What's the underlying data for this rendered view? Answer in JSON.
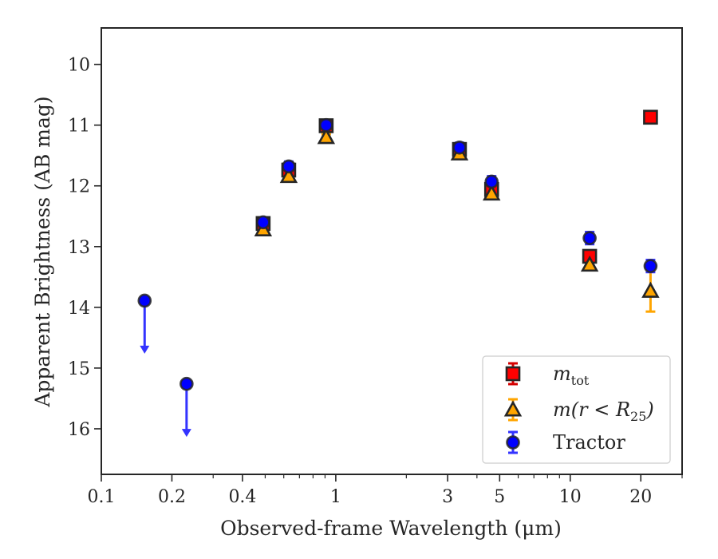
{
  "chart_data": {
    "type": "scatter",
    "xlabel": "Observed-frame Wavelength (μm)",
    "ylabel": "Apparent Brightness (AB mag)",
    "x_scale": "log",
    "xlim": [
      0.1,
      30
    ],
    "ylim": [
      16.75,
      9.4
    ],
    "y_inverted": true,
    "grid": false,
    "legend_position": "lower-right",
    "x_ticks": [
      {
        "value": 0.1,
        "label": "0.1"
      },
      {
        "value": 0.2,
        "label": "0.2"
      },
      {
        "value": 0.4,
        "label": "0.4"
      },
      {
        "value": 1,
        "label": "1"
      },
      {
        "value": 3,
        "label": "3"
      },
      {
        "value": 5,
        "label": "5"
      },
      {
        "value": 10,
        "label": "10"
      },
      {
        "value": 20,
        "label": "20"
      }
    ],
    "x_minor_ticks": [
      0.3,
      0.5,
      0.6,
      0.7,
      0.8,
      0.9,
      2,
      4,
      6,
      7,
      8,
      9,
      30
    ],
    "y_ticks": [
      {
        "value": 10,
        "label": "10"
      },
      {
        "value": 11,
        "label": "11"
      },
      {
        "value": 12,
        "label": "12"
      },
      {
        "value": 13,
        "label": "13"
      },
      {
        "value": 14,
        "label": "14"
      },
      {
        "value": 15,
        "label": "15"
      },
      {
        "value": 16,
        "label": "16"
      }
    ],
    "series": [
      {
        "name": "m_tot",
        "legend_main": "m",
        "legend_sub": "tot",
        "marker": "square",
        "color": "#ff0000",
        "edge_color": "#262626",
        "error_color": "#d40000",
        "points": [
          {
            "x": 0.49,
            "y": 12.62,
            "err": 0.06
          },
          {
            "x": 0.63,
            "y": 11.74,
            "err": 0.06
          },
          {
            "x": 0.91,
            "y": 11.01,
            "err": 0.06
          },
          {
            "x": 3.37,
            "y": 11.4,
            "err": 0.06
          },
          {
            "x": 4.62,
            "y": 12.06,
            "err": 0.08
          },
          {
            "x": 12.1,
            "y": 13.16,
            "err": 0.05
          },
          {
            "x": 22.0,
            "y": 10.87,
            "err": 0.04
          }
        ]
      },
      {
        "name": "m(r<R25)",
        "legend_main": "m(r < R",
        "legend_sub": "25",
        "legend_tail": ")",
        "marker": "triangle",
        "color": "#ffa500",
        "edge_color": "#262626",
        "error_color": "#ffa500",
        "points": [
          {
            "x": 0.49,
            "y": 12.72,
            "err": 0.05
          },
          {
            "x": 0.63,
            "y": 11.84,
            "err": 0.05
          },
          {
            "x": 0.91,
            "y": 11.2,
            "err": 0.05
          },
          {
            "x": 3.37,
            "y": 11.47,
            "err": 0.05
          },
          {
            "x": 4.62,
            "y": 12.13,
            "err": 0.05
          },
          {
            "x": 12.1,
            "y": 13.3,
            "err": 0.05
          },
          {
            "x": 22.0,
            "y": 13.73,
            "err": 0.34
          }
        ]
      },
      {
        "name": "Tractor",
        "legend_main": "Tractor",
        "marker": "circle",
        "color": "#0000ff",
        "edge_color": "#262626",
        "error_color": "#3333ff",
        "points": [
          {
            "x": 0.49,
            "y": 12.6,
            "err": 0.08
          },
          {
            "x": 0.63,
            "y": 11.68,
            "err": 0.08
          },
          {
            "x": 0.91,
            "y": 11.0,
            "err": 0.08
          },
          {
            "x": 3.37,
            "y": 11.37,
            "err": 0.08
          },
          {
            "x": 4.62,
            "y": 11.93,
            "err": 0.09
          },
          {
            "x": 12.1,
            "y": 12.86,
            "err": 0.1
          },
          {
            "x": 22.0,
            "y": 13.32,
            "err": 0.1
          }
        ],
        "upper_limits": [
          {
            "x": 0.153,
            "y": 13.89,
            "arrow_to": 14.75
          },
          {
            "x": 0.231,
            "y": 15.26,
            "arrow_to": 16.12
          }
        ]
      }
    ]
  }
}
